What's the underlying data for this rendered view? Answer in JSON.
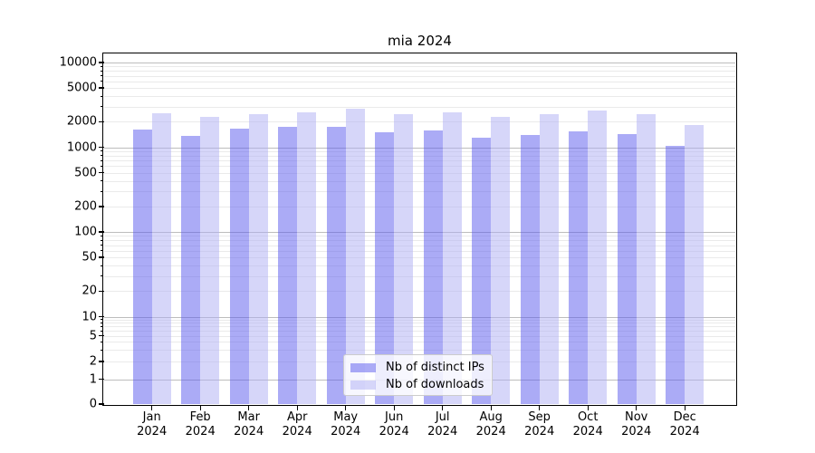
{
  "chart_data": {
    "type": "bar",
    "title": "mia 2024",
    "categories": [
      "Jan 2024",
      "Feb 2024",
      "Mar 2024",
      "Apr 2024",
      "May 2024",
      "Jun 2024",
      "Jul 2024",
      "Aug 2024",
      "Sep 2024",
      "Oct 2024",
      "Nov 2024",
      "Dec 2024"
    ],
    "series": [
      {
        "name": "Nb of distinct IPs",
        "color": "rgba(88,88,238,0.5)",
        "solid_color": "#ababf6",
        "values": [
          1600,
          1350,
          1670,
          1740,
          1760,
          1510,
          1560,
          1310,
          1400,
          1540,
          1430,
          1050
        ]
      },
      {
        "name": "Nb of downloads",
        "color": "rgba(173,173,243,0.5)",
        "solid_color": "#d6d6f9",
        "values": [
          2520,
          2300,
          2450,
          2580,
          2870,
          2440,
          2560,
          2280,
          2480,
          2730,
          2440,
          1830
        ]
      }
    ],
    "yscale": "log-like, 0 baseline",
    "ylim": [
      0,
      12500
    ],
    "y_tick_labels": [
      "10000",
      "5000",
      "2000",
      "1000",
      "500",
      "200",
      "100",
      "50",
      "20",
      "10",
      "5",
      "2",
      "1",
      "0"
    ],
    "y_tick_values": [
      10000,
      5000,
      2000,
      1000,
      500,
      200,
      100,
      50,
      20,
      10,
      5,
      2,
      1,
      0
    ],
    "grid": "horizontal major and minor",
    "legend_position": "lower center"
  },
  "colors": {
    "background": "#ffffff",
    "grid_major": "#bdbdbd",
    "grid_minor": "#eaeaea",
    "axis": "#000000"
  }
}
